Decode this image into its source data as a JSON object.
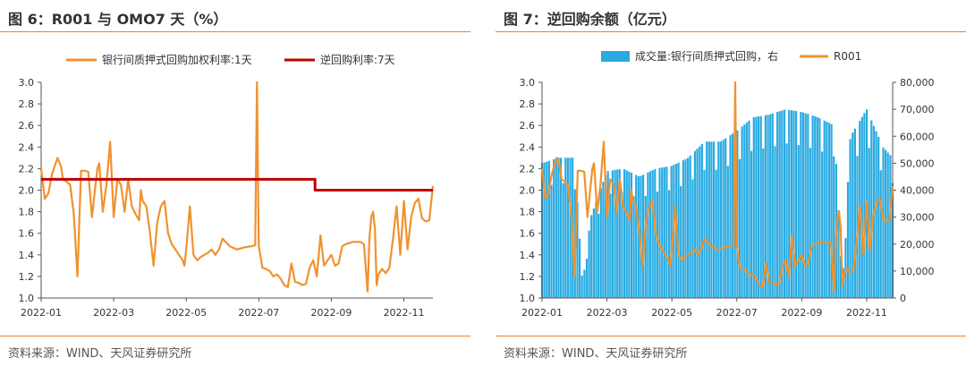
{
  "charts": [
    {
      "title": "图 6：R001 与 OMO7 天（%）",
      "source": "资料来源：WIND、天风证券研究所"
    },
    {
      "title": "图 7：逆回购余额（亿元）",
      "source": "资料来源：WIND、天风证券研究所"
    }
  ],
  "chart_data": [
    {
      "type": "line",
      "title": "R001 与 OMO7 天（%）",
      "xlabel": "",
      "ylabel": "",
      "x_tick_labels": [
        "2022-01",
        "2022-03",
        "2022-05",
        "2022-07",
        "2022-09",
        "2022-11"
      ],
      "xlim_months": [
        0,
        10.8
      ],
      "ylim": [
        1.0,
        3.0
      ],
      "yticks": [
        1.0,
        1.2,
        1.4,
        1.6,
        1.8,
        2.0,
        2.2,
        2.4,
        2.6,
        2.8,
        3.0
      ],
      "y_tick_labels": [
        "1.0",
        "1.2",
        "1.4",
        "1.6",
        "1.8",
        "2.0",
        "2.2",
        "2.4",
        "2.6",
        "2.8",
        "3.0"
      ],
      "legend_position": "top",
      "series": [
        {
          "name": "银行间质押式回购加权利率:1天",
          "color": "#F0922E",
          "x": [
            0,
            0.1,
            0.2,
            0.3,
            0.45,
            0.55,
            0.6,
            0.7,
            0.8,
            0.9,
            1.0,
            1.1,
            1.2,
            1.3,
            1.4,
            1.5,
            1.55,
            1.6,
            1.7,
            1.8,
            1.9,
            2.0,
            2.1,
            2.2,
            2.3,
            2.4,
            2.5,
            2.6,
            2.7,
            2.75,
            2.8,
            2.9,
            3.0,
            3.1,
            3.2,
            3.3,
            3.4,
            3.5,
            3.6,
            3.7,
            3.8,
            3.9,
            3.95,
            4.0,
            4.1,
            4.2,
            4.3,
            4.4,
            4.5,
            4.6,
            4.7,
            4.8,
            4.9,
            5.0,
            5.2,
            5.4,
            5.6,
            5.8,
            5.9,
            5.95,
            6.0,
            6.1,
            6.2,
            6.3,
            6.4,
            6.5,
            6.6,
            6.7,
            6.8,
            6.9,
            7.0,
            7.1,
            7.2,
            7.3,
            7.4,
            7.5,
            7.6,
            7.7,
            7.8,
            7.9,
            8.0,
            8.1,
            8.2,
            8.3,
            8.4,
            8.6,
            8.8,
            8.9,
            9.0,
            9.05,
            9.1,
            9.15,
            9.2,
            9.25,
            9.3,
            9.4,
            9.5,
            9.6,
            9.7,
            9.8,
            9.9,
            10.0,
            10.1,
            10.2,
            10.3,
            10.4,
            10.5,
            10.6,
            10.7,
            10.8
          ],
          "values": [
            2.2,
            1.92,
            1.97,
            2.15,
            2.3,
            2.22,
            2.1,
            2.08,
            2.05,
            1.78,
            1.2,
            2.18,
            2.18,
            2.17,
            1.75,
            2.05,
            2.2,
            2.25,
            1.8,
            2.05,
            2.45,
            1.75,
            2.1,
            2.05,
            1.8,
            2.1,
            1.85,
            1.78,
            1.72,
            2.0,
            1.9,
            1.85,
            1.6,
            1.3,
            1.7,
            1.85,
            1.9,
            1.6,
            1.5,
            1.45,
            1.4,
            1.35,
            1.3,
            1.45,
            1.85,
            1.4,
            1.35,
            1.38,
            1.4,
            1.42,
            1.45,
            1.4,
            1.45,
            1.55,
            1.48,
            1.45,
            1.47,
            1.48,
            1.49,
            3.0,
            1.48,
            1.28,
            1.27,
            1.25,
            1.2,
            1.22,
            1.18,
            1.12,
            1.1,
            1.32,
            1.15,
            1.14,
            1.12,
            1.13,
            1.28,
            1.35,
            1.2,
            1.58,
            1.3,
            1.35,
            1.4,
            1.3,
            1.32,
            1.48,
            1.5,
            1.52,
            1.52,
            1.5,
            1.06,
            1.55,
            1.75,
            1.8,
            1.65,
            1.12,
            1.22,
            1.27,
            1.23,
            1.28,
            1.55,
            1.85,
            1.4,
            1.9,
            1.45,
            1.75,
            1.88,
            1.92,
            1.74,
            1.71,
            1.72,
            2.04
          ]
        },
        {
          "name": "逆回购利率:7天",
          "color": "#C00000",
          "x": [
            0,
            7.55,
            7.55,
            10.8
          ],
          "values": [
            2.1,
            2.1,
            2.0,
            2.0
          ]
        }
      ]
    },
    {
      "type": "bar+line",
      "title": "逆回购余额（亿元）",
      "x_tick_labels": [
        "2022-01",
        "2022-03",
        "2022-05",
        "2022-07",
        "2022-09",
        "2022-11"
      ],
      "xlim_months": [
        0,
        10.8
      ],
      "ylim_left": [
        1.0,
        3.0
      ],
      "ylim_right": [
        0,
        80000
      ],
      "y_tick_labels_left": [
        "1.0",
        "1.2",
        "1.4",
        "1.6",
        "1.8",
        "2.0",
        "2.2",
        "2.4",
        "2.6",
        "2.8",
        "3.0"
      ],
      "y_tick_labels_right": [
        "0",
        "10,000",
        "20,000",
        "30,000",
        "40,000",
        "50,000",
        "60,000",
        "70,000",
        "80,000"
      ],
      "legend_position": "top",
      "series": [
        {
          "name": "成交量:银行间质押式回购，右",
          "type": "bar",
          "axis": "right",
          "color": "#29ABE2",
          "x": [
            0,
            0.5,
            1.0,
            1.25,
            1.5,
            2.0,
            2.5,
            3.0,
            3.5,
            4.0,
            4.5,
            5.0,
            5.5,
            6.0,
            6.5,
            7.0,
            7.5,
            8.0,
            8.5,
            9.0,
            9.25,
            9.5,
            10.0,
            10.5,
            10.8
          ],
          "values": [
            50000,
            52000,
            52000,
            5000,
            30000,
            47000,
            48000,
            45000,
            48000,
            49000,
            52000,
            58000,
            58000,
            62000,
            67000,
            68000,
            70000,
            69000,
            67000,
            64000,
            5000,
            60000,
            70000,
            56000,
            52000
          ]
        },
        {
          "name": "R001",
          "type": "line",
          "axis": "left",
          "color": "#F0922E",
          "x": [
            0,
            0.1,
            0.2,
            0.3,
            0.45,
            0.55,
            0.6,
            0.7,
            0.8,
            0.9,
            1.0,
            1.1,
            1.2,
            1.3,
            1.4,
            1.5,
            1.55,
            1.6,
            1.7,
            1.8,
            1.9,
            2.0,
            2.1,
            2.2,
            2.3,
            2.4,
            2.5,
            2.6,
            2.7,
            2.75,
            2.8,
            2.9,
            3.0,
            3.1,
            3.2,
            3.3,
            3.4,
            3.5,
            3.6,
            3.7,
            3.8,
            3.9,
            3.95,
            4.0,
            4.1,
            4.2,
            4.3,
            4.4,
            4.5,
            4.6,
            4.7,
            4.8,
            4.9,
            5.0,
            5.2,
            5.4,
            5.6,
            5.8,
            5.9,
            5.95,
            6.0,
            6.1,
            6.2,
            6.3,
            6.4,
            6.5,
            6.6,
            6.7,
            6.8,
            6.9,
            7.0,
            7.1,
            7.2,
            7.3,
            7.4,
            7.5,
            7.6,
            7.7,
            7.8,
            7.9,
            8.0,
            8.1,
            8.2,
            8.3,
            8.4,
            8.6,
            8.8,
            8.9,
            9.0,
            9.05,
            9.1,
            9.15,
            9.2,
            9.25,
            9.3,
            9.4,
            9.5,
            9.6,
            9.7,
            9.8,
            9.9,
            10.0,
            10.1,
            10.2,
            10.3,
            10.4,
            10.5,
            10.6,
            10.7,
            10.8
          ],
          "values": [
            2.2,
            1.92,
            1.97,
            2.15,
            2.3,
            2.22,
            2.1,
            2.08,
            2.05,
            1.78,
            1.2,
            2.18,
            2.18,
            2.17,
            1.75,
            2.05,
            2.2,
            2.25,
            1.8,
            2.05,
            2.45,
            1.75,
            2.1,
            2.05,
            1.8,
            2.1,
            1.85,
            1.78,
            1.72,
            2.0,
            1.9,
            1.85,
            1.6,
            1.3,
            1.7,
            1.85,
            1.9,
            1.6,
            1.5,
            1.45,
            1.4,
            1.35,
            1.3,
            1.45,
            1.85,
            1.4,
            1.35,
            1.38,
            1.4,
            1.42,
            1.45,
            1.4,
            1.45,
            1.55,
            1.48,
            1.45,
            1.47,
            1.48,
            1.49,
            3.0,
            1.48,
            1.28,
            1.27,
            1.25,
            1.2,
            1.22,
            1.18,
            1.12,
            1.1,
            1.32,
            1.15,
            1.14,
            1.12,
            1.13,
            1.28,
            1.35,
            1.2,
            1.58,
            1.3,
            1.35,
            1.4,
            1.3,
            1.32,
            1.48,
            1.5,
            1.52,
            1.52,
            1.5,
            1.06,
            1.55,
            1.75,
            1.8,
            1.65,
            1.12,
            1.22,
            1.27,
            1.23,
            1.28,
            1.55,
            1.85,
            1.4,
            1.9,
            1.45,
            1.75,
            1.88,
            1.92,
            1.74,
            1.71,
            1.72,
            2.04
          ]
        }
      ]
    }
  ]
}
